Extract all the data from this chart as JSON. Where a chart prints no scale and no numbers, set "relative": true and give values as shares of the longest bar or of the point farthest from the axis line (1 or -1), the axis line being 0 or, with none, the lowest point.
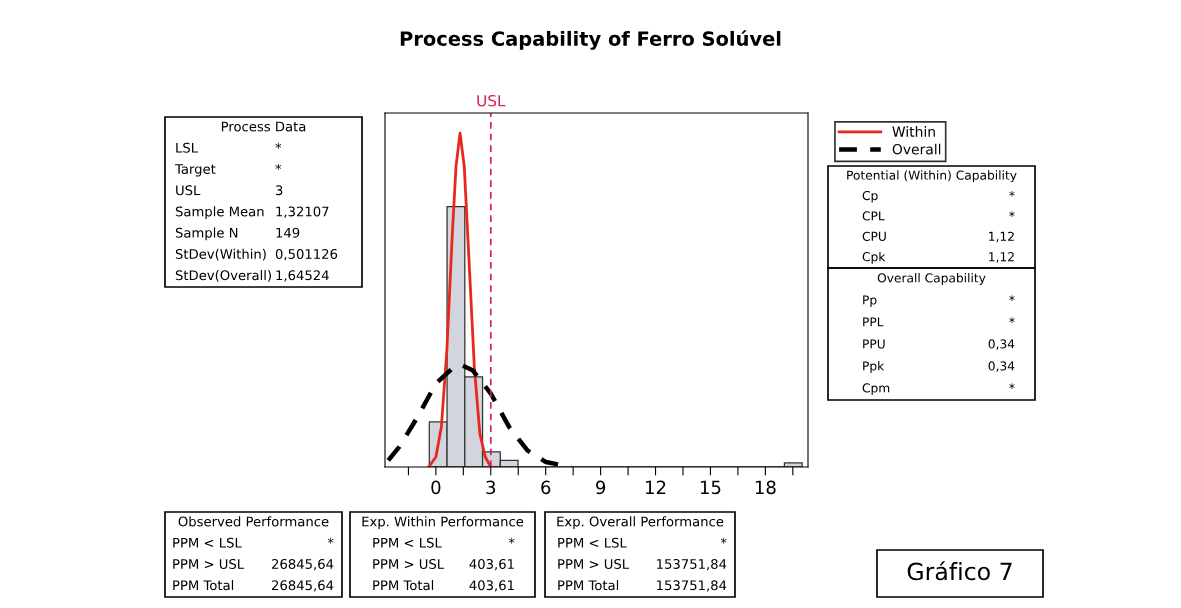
{
  "chart_data": {
    "type": "histogram",
    "title": "Process Capability of Ferro Solúvel",
    "relative": true,
    "bins": [
      -0.36,
      0.61,
      1.58,
      2.55,
      3.52,
      4.49,
      5.46,
      6.43,
      7.4,
      8.37,
      9.34,
      10.31,
      11.28,
      12.25,
      13.22,
      14.19,
      15.16,
      16.13,
      17.1,
      18.07,
      19.04,
      20.01
    ],
    "series": [
      {
        "color": "#d3d5de",
        "values": [
          0.135,
          0.78,
          0.27,
          0.045,
          0.02,
          0,
          0,
          0,
          0,
          0,
          0,
          0,
          0,
          0,
          0,
          0,
          0,
          0,
          0,
          0,
          0.012
        ]
      },
      {
        "type": "line",
        "name": "Within",
        "color": "#e8281e",
        "line_style": "solid",
        "x": [
          -0.4,
          0.0,
          0.3,
          0.6,
          0.9,
          1.1,
          1.32,
          1.55,
          1.8,
          2.1,
          2.4,
          2.7,
          3.0
        ],
        "values": [
          0,
          0.03,
          0.12,
          0.35,
          0.7,
          0.9,
          1.0,
          0.9,
          0.63,
          0.3,
          0.1,
          0.03,
          0
        ]
      },
      {
        "type": "line",
        "name": "Overall",
        "color": "#000000",
        "line_style": "dashed",
        "x": [
          -2.6,
          -2,
          -1,
          0,
          1,
          1.4,
          2,
          3,
          4,
          5,
          6,
          7.4
        ],
        "values": [
          0.02,
          0.06,
          0.15,
          0.25,
          0.3,
          0.305,
          0.29,
          0.22,
          0.12,
          0.05,
          0.015,
          0
        ]
      }
    ],
    "xlim": [
      -2.78,
      20.33
    ],
    "xticks": [
      {
        "value": -1.5,
        "label": null
      },
      0,
      {
        "value": 1.5,
        "label": null
      },
      3,
      {
        "value": 4.5,
        "label": null
      },
      6,
      {
        "value": 7.5,
        "label": null
      },
      9,
      {
        "value": 10.5,
        "label": null
      },
      12,
      {
        "value": 13.5,
        "label": null
      },
      15,
      {
        "value": 16.5,
        "label": null
      },
      18,
      {
        "value": 19.5,
        "label": null
      }
    ],
    "ref_lines": [
      {
        "axis": "x",
        "value": 3,
        "label": "USL",
        "color": "#d6204f",
        "line_style": "dashed"
      }
    ],
    "legend": "top right",
    "marker": "none",
    "annotations": [
      "Process Data\nLSL\t*\nTarget\t*\nUSL\t3\nSample Mean\t1,32107\nSample N\t149\nStDev(Within)\t0,501126\nStDev(Overall)\t1,64524",
      "Potential (Within) Capability\nCp\t*\nCPL\t*\nCPU\t1,12\nCpk\t1,12",
      "Overall Capability\nPp\t*\nPPL\t*\nPPU\t0,34\nPpk\t0,34\nCpm\t*",
      "Observed Performance\nPPM < LSL\t*\nPPM > USL\t26845,64\nPPM Total\t26845,64",
      "Exp. Within Performance\nPPM < LSL\t*\nPPM > USL\t403,61\nPPM Total\t403,61",
      "Exp. Overall Performance\nPPM < LSL\t*\nPPM > USL\t153751,84\nPPM Total\t153751,84",
      "Gráfico 7"
    ]
  }
}
